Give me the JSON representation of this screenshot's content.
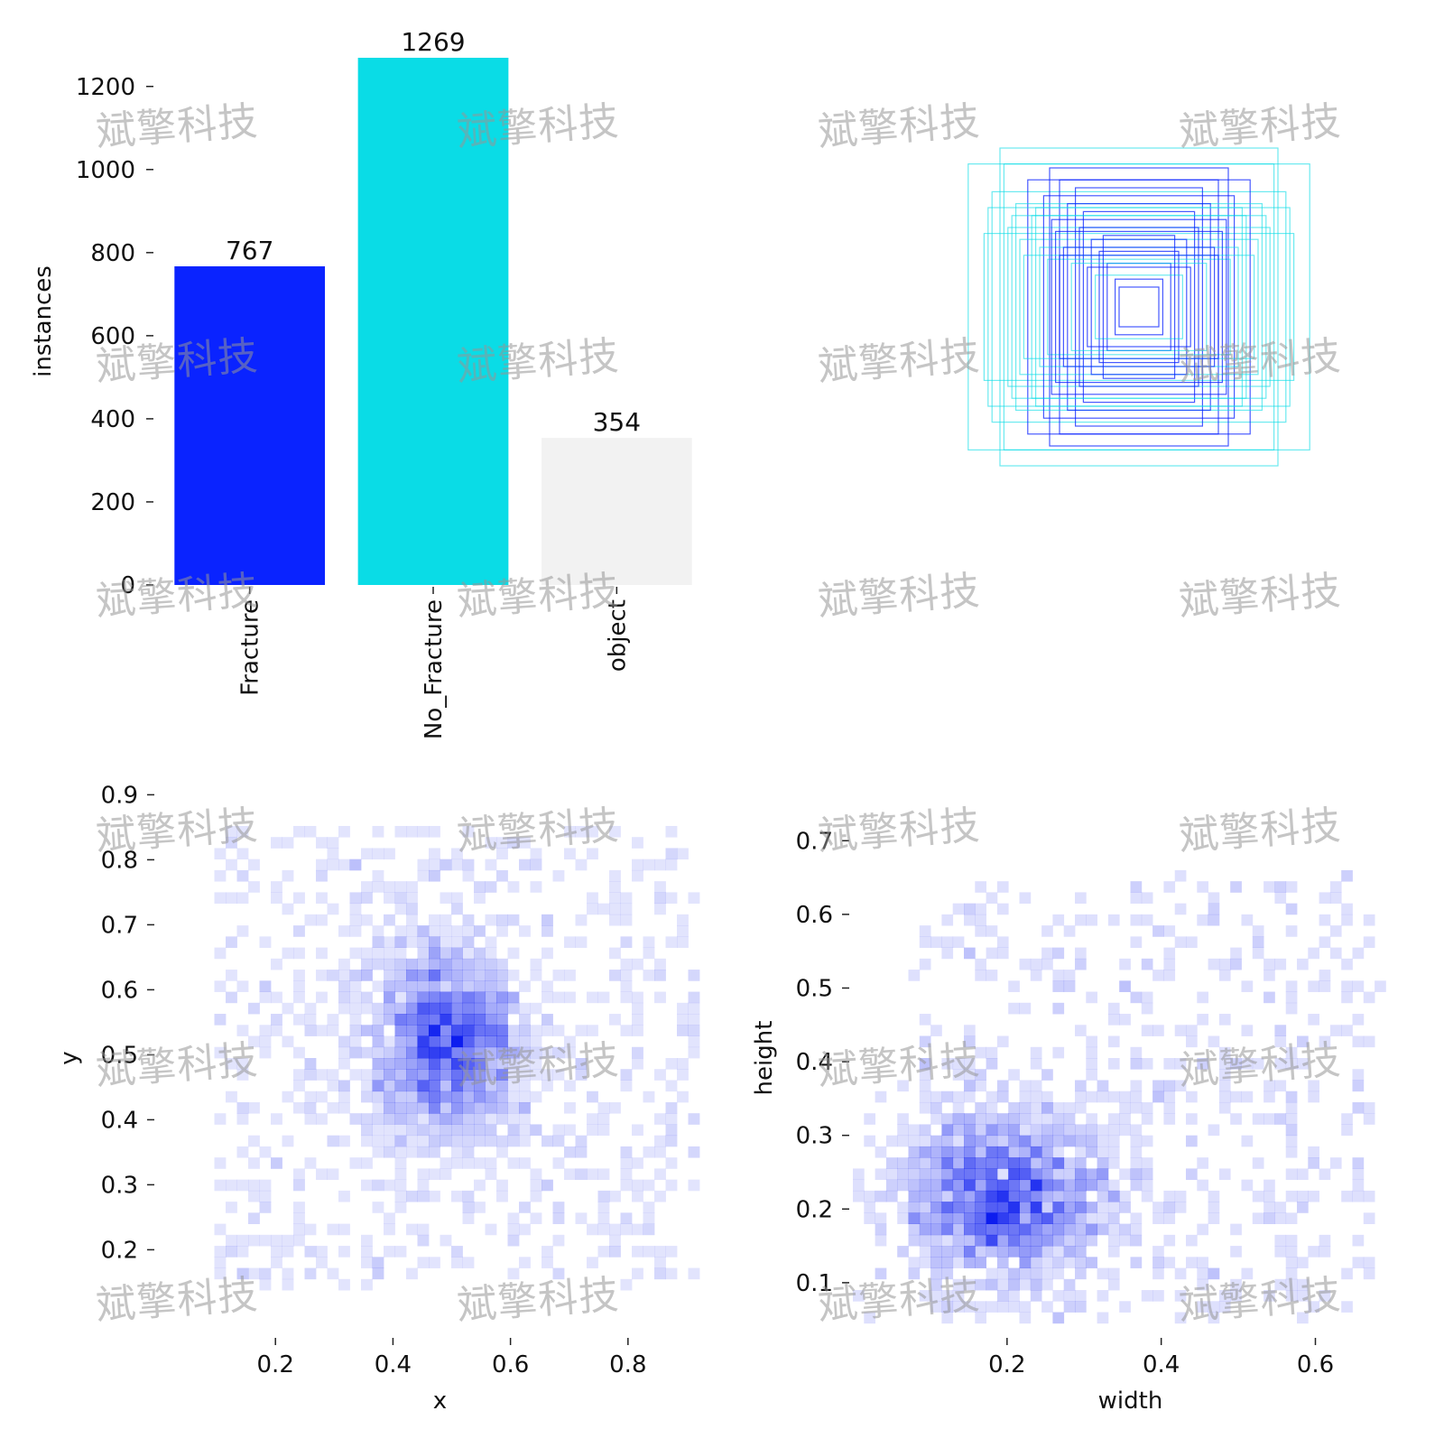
{
  "watermark": "斌擎科技",
  "colors": {
    "fracture": "#0a23ff",
    "no_fracture": "#0adce6",
    "object": "#f2f2f2",
    "heat": "#0011ee"
  },
  "chart_data": [
    {
      "type": "bar",
      "categories": [
        "Fracture",
        "No_Fracture",
        "object"
      ],
      "values": [
        767,
        1269,
        354
      ],
      "data_labels": [
        "767",
        "1269",
        "354"
      ],
      "ylabel": "instances",
      "yticks": [
        0,
        200,
        400,
        600,
        800,
        1000,
        1200
      ],
      "ylim": [
        0,
        1269
      ],
      "bar_colors": [
        "#0a23ff",
        "#0adce6",
        "#f2f2f2"
      ]
    },
    {
      "type": "scatter",
      "description_kind": "box-outlines",
      "boxes": [
        {
          "w": 0.86,
          "h": 0.72,
          "c": "no_fracture"
        },
        {
          "w": 0.7,
          "h": 0.8,
          "c": "no_fracture"
        },
        {
          "w": 0.68,
          "h": 0.72,
          "c": "no_fracture"
        },
        {
          "w": 0.74,
          "h": 0.58,
          "c": "no_fracture"
        },
        {
          "w": 0.78,
          "h": 0.37,
          "c": "no_fracture"
        },
        {
          "w": 0.56,
          "h": 0.64,
          "c": "fracture"
        },
        {
          "w": 0.45,
          "h": 0.7,
          "c": "fracture"
        },
        {
          "w": 0.4,
          "h": 0.64,
          "c": "fracture"
        },
        {
          "w": 0.62,
          "h": 0.52,
          "c": "no_fracture"
        },
        {
          "w": 0.32,
          "h": 0.6,
          "c": "fracture"
        },
        {
          "w": 0.66,
          "h": 0.4,
          "c": "no_fracture"
        },
        {
          "w": 0.6,
          "h": 0.34,
          "c": "no_fracture"
        },
        {
          "w": 0.54,
          "h": 0.46,
          "c": "no_fracture"
        },
        {
          "w": 0.48,
          "h": 0.56,
          "c": "fracture"
        },
        {
          "w": 0.36,
          "h": 0.52,
          "c": "fracture"
        },
        {
          "w": 0.28,
          "h": 0.48,
          "c": "fracture"
        },
        {
          "w": 0.5,
          "h": 0.3,
          "c": "no_fracture"
        },
        {
          "w": 0.42,
          "h": 0.38,
          "c": "fracture"
        },
        {
          "w": 0.3,
          "h": 0.4,
          "c": "fracture"
        },
        {
          "w": 0.24,
          "h": 0.34,
          "c": "fracture"
        },
        {
          "w": 0.58,
          "h": 0.26,
          "c": "no_fracture"
        },
        {
          "w": 0.46,
          "h": 0.24,
          "c": "no_fracture"
        },
        {
          "w": 0.38,
          "h": 0.3,
          "c": "fracture"
        },
        {
          "w": 0.2,
          "h": 0.28,
          "c": "fracture"
        },
        {
          "w": 0.26,
          "h": 0.2,
          "c": "fracture"
        },
        {
          "w": 0.16,
          "h": 0.22,
          "c": "fracture"
        },
        {
          "w": 0.12,
          "h": 0.14,
          "c": "fracture"
        },
        {
          "w": 0.1,
          "h": 0.1,
          "c": "fracture"
        },
        {
          "w": 0.22,
          "h": 0.16,
          "c": "no_fracture"
        },
        {
          "w": 0.34,
          "h": 0.22,
          "c": "no_fracture"
        },
        {
          "w": 0.44,
          "h": 0.44,
          "c": "fracture"
        },
        {
          "w": 0.52,
          "h": 0.5,
          "c": "no_fracture"
        },
        {
          "w": 0.64,
          "h": 0.46,
          "c": "no_fracture"
        },
        {
          "w": 0.76,
          "h": 0.5,
          "c": "no_fracture"
        },
        {
          "w": 0.4,
          "h": 0.26,
          "c": "fracture"
        },
        {
          "w": 0.18,
          "h": 0.36,
          "c": "fracture"
        }
      ]
    },
    {
      "type": "heatmap",
      "xlabel": "x",
      "ylabel": "y",
      "xticks": [
        0.2,
        0.4,
        0.6,
        0.8
      ],
      "yticks": [
        0.2,
        0.3,
        0.4,
        0.5,
        0.6,
        0.7,
        0.8,
        0.9
      ],
      "xlim": [
        0.0,
        0.96
      ],
      "ylim": [
        0.07,
        0.92
      ],
      "peak": {
        "x": 0.49,
        "y": 0.52
      }
    },
    {
      "type": "heatmap",
      "xlabel": "width",
      "ylabel": "height",
      "xticks": [
        0.2,
        0.4,
        0.6
      ],
      "yticks": [
        0.1,
        0.2,
        0.3,
        0.4,
        0.5,
        0.6,
        0.7
      ],
      "xlim": [
        0.0,
        0.72
      ],
      "ylim": [
        0.03,
        0.78
      ],
      "peak": {
        "x": 0.16,
        "y": 0.22
      }
    }
  ]
}
